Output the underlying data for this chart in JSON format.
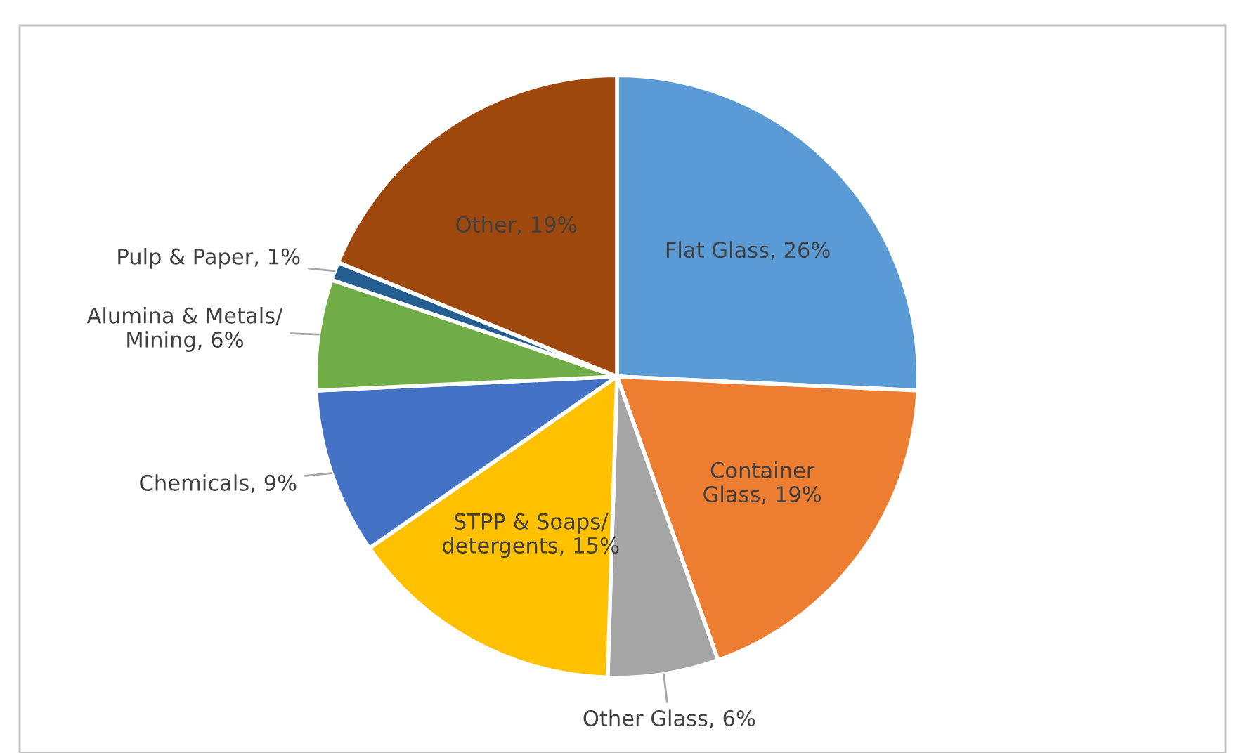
{
  "chart_data": {
    "type": "pie",
    "categories": [
      "Flat Glass",
      "Container Glass",
      "Other Glass",
      "STPP & Soaps/ detergents",
      "Chemicals",
      "Alumina & Metals/ Mining",
      "Pulp & Paper",
      "Other"
    ],
    "values": [
      26,
      19,
      6,
      15,
      9,
      6,
      1,
      19
    ],
    "value_labels": [
      "26%",
      "19%",
      "6%",
      "15%",
      "9%",
      "6%",
      "1%",
      "19%"
    ],
    "colors": [
      "#5b9bd5",
      "#ed7d31",
      "#a5a5a5",
      "#ffc000",
      "#4472c4",
      "#70ad47",
      "#255e91",
      "#9e480e"
    ],
    "legend": false
  }
}
